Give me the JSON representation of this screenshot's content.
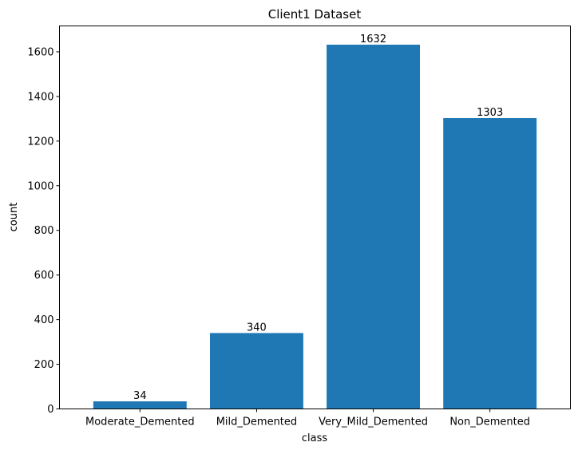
{
  "chart_data": {
    "type": "bar",
    "title": "Client1 Dataset",
    "xlabel": "class",
    "ylabel": "count",
    "categories": [
      "Moderate_Demented",
      "Mild_Demented",
      "Very_Mild_Demented",
      "Non_Demented"
    ],
    "values": [
      34,
      340,
      1632,
      1303
    ],
    "data_labels": [
      "34",
      "340",
      "1632",
      "1303"
    ],
    "ylim": [
      0,
      1716
    ],
    "yticks": [
      0,
      200,
      400,
      600,
      800,
      1000,
      1200,
      1400,
      1600
    ],
    "ytick_labels": [
      "0",
      "200",
      "400",
      "600",
      "800",
      "1000",
      "1200",
      "1400",
      "1600"
    ],
    "bar_color": "#1f77b4",
    "grid": false,
    "legend": "none"
  }
}
